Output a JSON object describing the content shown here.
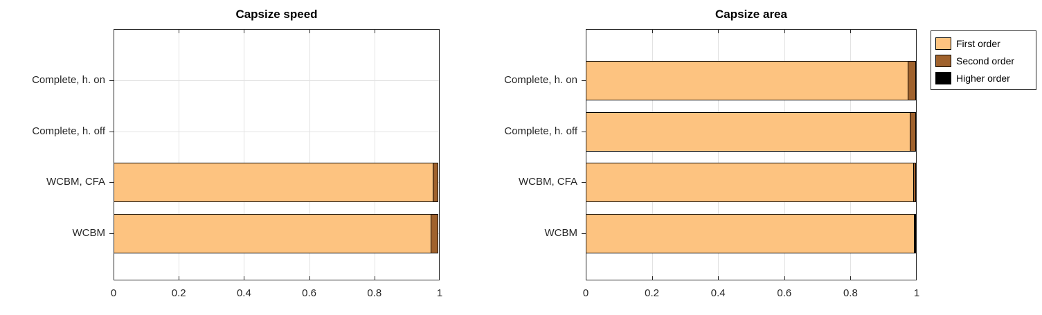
{
  "figure": {
    "background": "#ffffff",
    "axis_color": "#262626",
    "grid_color": "#e2e2e2",
    "bar_edge_color": "#000000"
  },
  "legend": {
    "position": "outside-top-right",
    "entries": [
      {
        "label": "First order",
        "color": "#FDC380"
      },
      {
        "label": "Second order",
        "color": "#A0622D"
      },
      {
        "label": "Higher order",
        "color": "#000000"
      }
    ]
  },
  "chart_data": [
    {
      "type": "bar",
      "orientation": "horizontal",
      "stacked": true,
      "title": "Capsize speed",
      "categories": [
        "Complete, h. on",
        "Complete, h. off",
        "WCBM, CFA",
        "WCBM"
      ],
      "series": [
        {
          "name": "First order",
          "color": "#FDC380",
          "values": [
            0,
            0,
            0.98,
            0.975
          ]
        },
        {
          "name": "Second order",
          "color": "#A0622D",
          "values": [
            0,
            0,
            0.017,
            0.022
          ]
        },
        {
          "name": "Higher order",
          "color": "#000000",
          "values": [
            0,
            0,
            0,
            0
          ]
        }
      ],
      "xlim": [
        0,
        1
      ],
      "xticks": [
        {
          "value": 0,
          "label": "0"
        },
        {
          "value": 0.2,
          "label": "0.2"
        },
        {
          "value": 0.4,
          "label": "0.4"
        },
        {
          "value": 0.6,
          "label": "0.6"
        },
        {
          "value": 0.8,
          "label": "0.8"
        },
        {
          "value": 1,
          "label": "1"
        }
      ],
      "grid": true
    },
    {
      "type": "bar",
      "orientation": "horizontal",
      "stacked": true,
      "title": "Capsize area",
      "categories": [
        "Complete, h. on",
        "Complete, h. off",
        "WCBM, CFA",
        "WCBM"
      ],
      "series": [
        {
          "name": "First order",
          "color": "#FDC380",
          "values": [
            0.975,
            0.982,
            0.991,
            0.993
          ]
        },
        {
          "name": "Second order",
          "color": "#A0622D",
          "values": [
            0.025,
            0.018,
            0.009,
            0
          ]
        },
        {
          "name": "Higher order",
          "color": "#000000",
          "values": [
            0,
            0,
            0,
            0.007
          ]
        }
      ],
      "xlim": [
        0,
        1
      ],
      "xticks": [
        {
          "value": 0,
          "label": "0"
        },
        {
          "value": 0.2,
          "label": "0.2"
        },
        {
          "value": 0.4,
          "label": "0.4"
        },
        {
          "value": 0.6,
          "label": "0.6"
        },
        {
          "value": 0.8,
          "label": "0.8"
        },
        {
          "value": 1,
          "label": "1"
        }
      ],
      "grid": true
    }
  ]
}
